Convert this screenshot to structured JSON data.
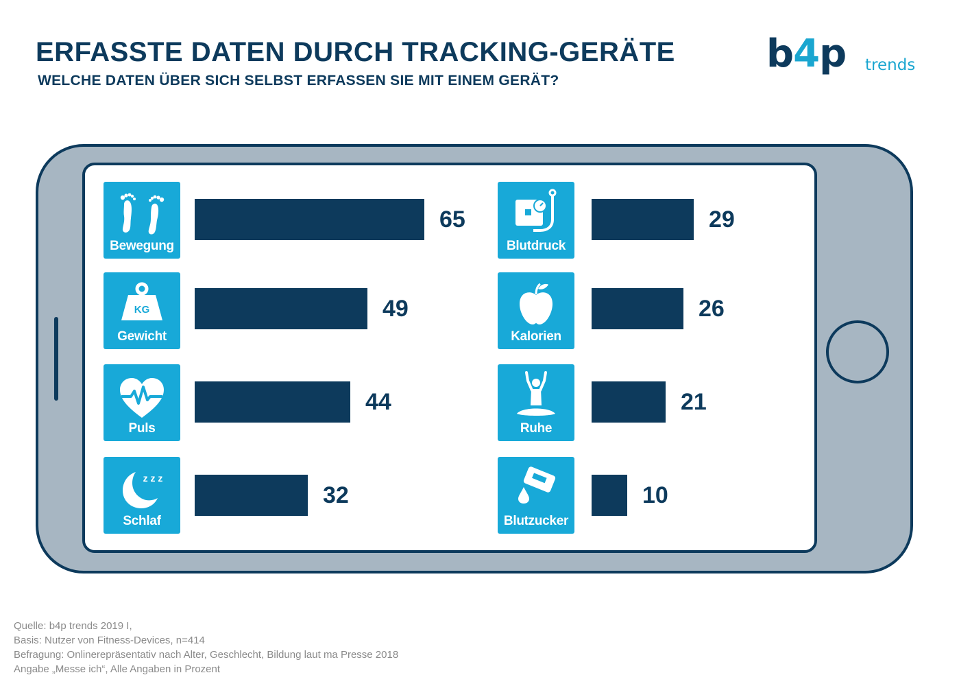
{
  "header": {
    "title": "ERFASSTE DATEN DURCH TRACKING-GERÄTE",
    "subtitle": "WELCHE DATEN ÜBER SICH SELBST ERFASSEN SIE MIT EINEM GERÄT?"
  },
  "logo": {
    "brand_part1": "b",
    "brand_part2": "4",
    "brand_part3": "p",
    "tagline": "trends"
  },
  "colors": {
    "bar": "#0d3a5c",
    "tile": "#18a9d8",
    "title": "#0d3a5c",
    "phone_body": "#a7b6c2",
    "logo_accent": "#1aa6d0"
  },
  "chart_data": {
    "type": "bar",
    "orientation": "horizontal",
    "unit": "Prozent",
    "categories": [
      "Bewegung",
      "Gewicht",
      "Puls",
      "Schlaf",
      "Blutdruck",
      "Kalorien",
      "Ruhe",
      "Blutzucker"
    ],
    "values": [
      65,
      49,
      44,
      32,
      29,
      26,
      21,
      10
    ],
    "columns": [
      {
        "items": [
          {
            "label": "Bewegung",
            "value": 65,
            "icon": "footprints-icon"
          },
          {
            "label": "Gewicht",
            "value": 49,
            "icon": "weight-icon"
          },
          {
            "label": "Puls",
            "value": 44,
            "icon": "heart-pulse-icon"
          },
          {
            "label": "Schlaf",
            "value": 32,
            "icon": "moon-sleep-icon"
          }
        ]
      },
      {
        "items": [
          {
            "label": "Blutdruck",
            "value": 29,
            "icon": "blood-pressure-icon"
          },
          {
            "label": "Kalorien",
            "value": 26,
            "icon": "apple-icon"
          },
          {
            "label": "Ruhe",
            "value": 21,
            "icon": "meditation-icon"
          },
          {
            "label": "Blutzucker",
            "value": 10,
            "icon": "glucose-meter-icon"
          }
        ]
      }
    ]
  },
  "weight_badge": "KG",
  "sleep_badge": "z z z",
  "footnotes": {
    "line1": "Quelle: b4p trends 2019 I,",
    "line2": "Basis: Nutzer von Fitness-Devices, n=414",
    "line3": "Befragung: Onlinerepräsentativ nach Alter, Geschlecht, Bildung laut ma Presse 2018",
    "line4": "Angabe „Messe ich“, Alle Angaben in Prozent"
  }
}
